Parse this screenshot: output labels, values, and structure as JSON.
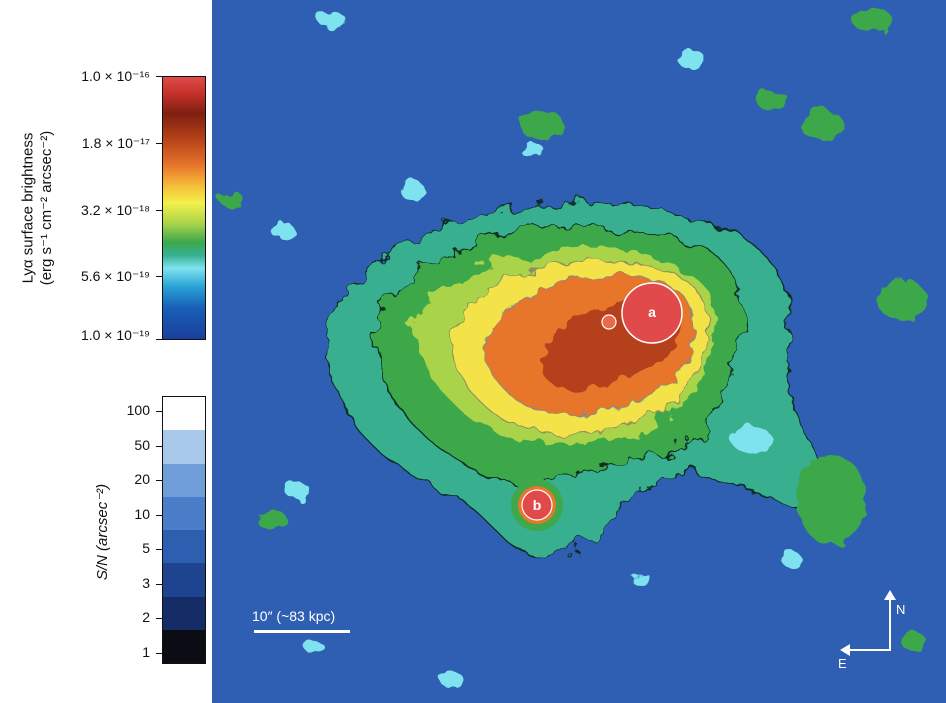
{
  "colorbar_surface_brightness": {
    "title_line1": "Lyα surface brightness",
    "title_line2": "(erg s⁻¹ cm⁻² arcsec⁻²)",
    "ticks": [
      "1.0 × 10⁻¹⁶",
      "1.8 × 10⁻¹⁷",
      "3.2 × 10⁻¹⁸",
      "5.6 × 10⁻¹⁹",
      "1.0 × 10⁻¹⁹"
    ]
  },
  "colorbar_sn": {
    "title": "S/N (arcsec⁻²)",
    "ticks": [
      "100",
      "50",
      "20",
      "10",
      "5",
      "3",
      "2",
      "1"
    ],
    "colors": [
      "#ffffff",
      "#a8c8ec",
      "#6f9ed8",
      "#4a7ec8",
      "#2d5fb0",
      "#1e4490",
      "#162c66",
      "#0c0c14"
    ]
  },
  "map": {
    "source_a": "a",
    "source_b": "b",
    "scale_bar_label": "10″ (~83 kpc)",
    "compass_north": "N",
    "compass_east": "E",
    "colors": {
      "background": "#2f5fb3",
      "green": "#3ea84a",
      "yellow": "#f4e24a",
      "orange": "#e8762b",
      "red": "#c8322c",
      "cyan": "#7fe3ef"
    }
  }
}
